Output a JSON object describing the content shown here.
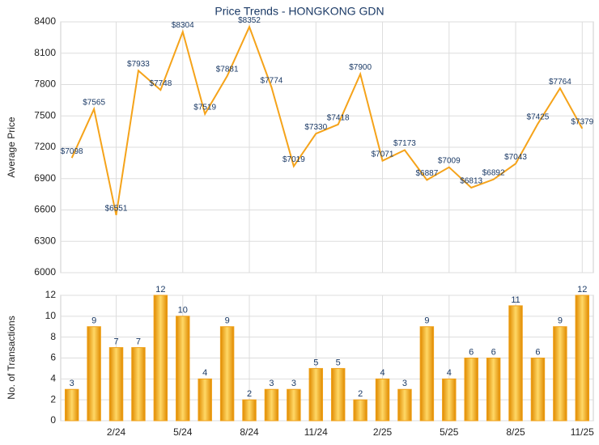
{
  "chart_data": [
    {
      "type": "line",
      "title": "Price Trends - HONGKONG GDN",
      "y_label": "Average Price",
      "color": "#f5a31a",
      "values": [
        7098,
        7565,
        6551,
        7933,
        7748,
        8304,
        7519,
        7881,
        8352,
        7774,
        7019,
        7330,
        7418,
        7900,
        7071,
        7173,
        6887,
        7009,
        6813,
        6892,
        7043,
        7425,
        7764,
        7379
      ],
      "value_labels": [
        "$7098",
        "$7565",
        "$6551",
        "$7933",
        "$7748",
        "$8304",
        "$7519",
        "$7881",
        "$8352",
        "$7774",
        "$7019",
        "$7330",
        "$7418",
        "$7900",
        "$7071",
        "$7173",
        "$6887",
        "$7009",
        "$6813",
        "$6892",
        "$7043",
        "$7425",
        "$7764",
        "$7379"
      ],
      "ylim": [
        6000,
        8400
      ],
      "yticks": [
        6000,
        6300,
        6600,
        6900,
        7200,
        7500,
        7800,
        8100,
        8400
      ],
      "grid": true
    },
    {
      "type": "bar",
      "y_label": "No. of Transactions",
      "color": "#f0a018",
      "categories": [
        null,
        null,
        "2/24",
        null,
        null,
        "5/24",
        null,
        null,
        "8/24",
        null,
        null,
        "11/24",
        null,
        null,
        "2/25",
        null,
        null,
        "5/25",
        null,
        null,
        "8/25",
        null,
        null,
        "11/25"
      ],
      "values": [
        3,
        9,
        7,
        7,
        12,
        10,
        4,
        9,
        2,
        3,
        3,
        5,
        5,
        2,
        4,
        3,
        9,
        4,
        6,
        6,
        11,
        6,
        9,
        12
      ],
      "ylim": [
        0,
        12
      ],
      "yticks": [
        0,
        2,
        4,
        6,
        8,
        10,
        12
      ],
      "grid": true
    }
  ]
}
